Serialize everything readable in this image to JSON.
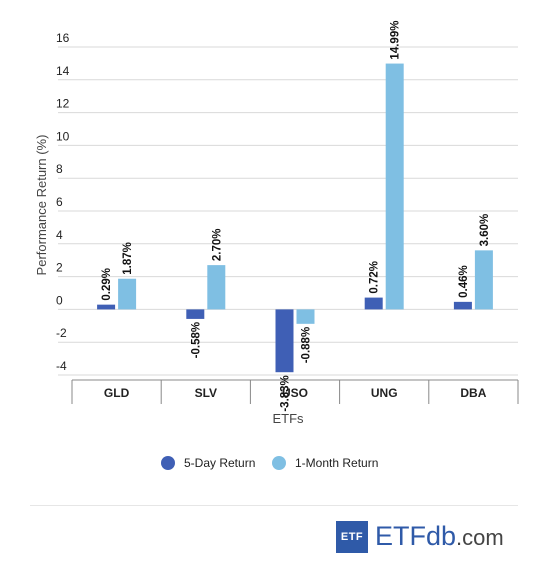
{
  "chart_data": {
    "type": "bar",
    "categories": [
      "GLD",
      "SLV",
      "USO",
      "UNG",
      "DBA"
    ],
    "series": [
      {
        "name": "5-Day Return",
        "values": [
          0.29,
          -0.58,
          -3.83,
          0.72,
          0.46
        ],
        "labels": [
          "0.29%",
          "-0.58%",
          "-3.83%",
          "0.72%",
          "0.46%"
        ],
        "color": "#3f5fb5"
      },
      {
        "name": "1-Month Return",
        "values": [
          1.87,
          2.7,
          -0.88,
          14.99,
          3.6
        ],
        "labels": [
          "1.87%",
          "2.70%",
          "-0.88%",
          "14.99%",
          "3.60%"
        ],
        "color": "#7fbfe3"
      }
    ],
    "ylim": [
      -4,
      16
    ],
    "yticks": [
      "16",
      "14",
      "12",
      "10",
      "8",
      "6",
      "4",
      "2",
      "0",
      "-2",
      "-4"
    ],
    "xlabel": "ETFs",
    "ylabel": "Performance Return (%)",
    "grid": true,
    "legend": "bottom-center"
  },
  "brand": {
    "box_text": "ETF",
    "name_part1": "ETF",
    "name_part2": "db",
    "name_part3": ".com",
    "color": "#2f5aa8"
  }
}
